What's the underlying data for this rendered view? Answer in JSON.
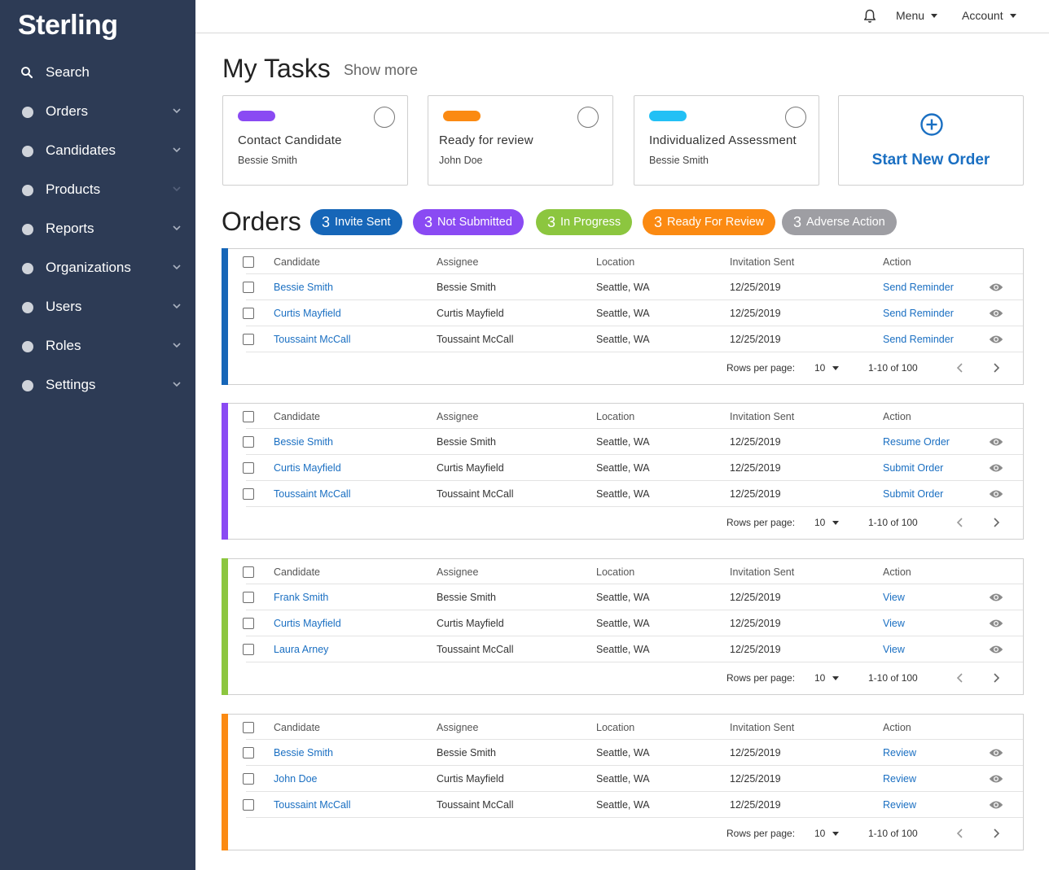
{
  "brand": {
    "name": "Sterling"
  },
  "sidebar": {
    "items": [
      {
        "label": "Search",
        "icon": "search-icon"
      },
      {
        "label": "Orders",
        "icon": "dot-icon"
      },
      {
        "label": "Candidates",
        "icon": "dot-icon"
      },
      {
        "label": "Products",
        "icon": "dot-icon"
      },
      {
        "label": "Reports",
        "icon": "dot-icon"
      },
      {
        "label": "Organizations",
        "icon": "dot-icon"
      },
      {
        "label": "Users",
        "icon": "dot-icon"
      },
      {
        "label": "Roles",
        "icon": "dot-icon"
      },
      {
        "label": "Settings",
        "icon": "dot-icon"
      }
    ]
  },
  "topbar": {
    "menu_label": "Menu",
    "account_label": "Account"
  },
  "tasks": {
    "title": "My Tasks",
    "show_more": "Show more",
    "cards": [
      {
        "title": "Contact Candidate",
        "person": "Bessie Smith",
        "color": "#8a4af3"
      },
      {
        "title": "Ready for review",
        "person": "John Doe",
        "color": "#fb8a12"
      },
      {
        "title": "Individualized Assessment",
        "person": "Bessie Smith",
        "color": "#22c0f5"
      }
    ],
    "start_new": "Start New Order"
  },
  "orders": {
    "title": "Orders",
    "badges": [
      {
        "count": "3",
        "label": "Invite Sent",
        "color": "#1666b8"
      },
      {
        "count": "3",
        "label": "Not Submitted",
        "color": "#8a4af3"
      },
      {
        "count": "3",
        "label": "In Progress",
        "color": "#8cc63f"
      },
      {
        "count": "3",
        "label": "Ready For Review",
        "color": "#fb8a12"
      },
      {
        "count": "3",
        "label": "Adverse Action",
        "color": "#9e9ea3"
      }
    ],
    "columns": {
      "candidate": "Candidate",
      "assignee": "Assignee",
      "location": "Location",
      "invitation": "Invitation Sent",
      "action": "Action"
    },
    "pagination": {
      "rows_label": "Rows per page:",
      "rows_value": "10",
      "range": "1-10 of 100"
    },
    "tables": [
      {
        "color": "#1666b8",
        "rows": [
          {
            "candidate": "Bessie Smith",
            "assignee": "Bessie Smith",
            "location": "Seattle, WA",
            "date": "12/25/2019",
            "action": "Send Reminder"
          },
          {
            "candidate": "Curtis Mayfield",
            "assignee": "Curtis Mayfield",
            "location": "Seattle, WA",
            "date": "12/25/2019",
            "action": "Send Reminder"
          },
          {
            "candidate": "Toussaint McCall",
            "assignee": "Toussaint McCall",
            "location": "Seattle, WA",
            "date": "12/25/2019",
            "action": "Send Reminder"
          }
        ]
      },
      {
        "color": "#8a4af3",
        "rows": [
          {
            "candidate": "Bessie Smith",
            "assignee": "Bessie Smith",
            "location": "Seattle, WA",
            "date": "12/25/2019",
            "action": "Resume Order"
          },
          {
            "candidate": "Curtis Mayfield",
            "assignee": "Curtis Mayfield",
            "location": "Seattle, WA",
            "date": "12/25/2019",
            "action": "Submit Order"
          },
          {
            "candidate": "Toussaint McCall",
            "assignee": "Toussaint McCall",
            "location": "Seattle, WA",
            "date": "12/25/2019",
            "action": "Submit Order"
          }
        ]
      },
      {
        "color": "#8cc63f",
        "rows": [
          {
            "candidate": "Frank Smith",
            "assignee": "Bessie Smith",
            "location": "Seattle, WA",
            "date": "12/25/2019",
            "action": "View"
          },
          {
            "candidate": "Curtis Mayfield",
            "assignee": "Curtis Mayfield",
            "location": "Seattle, WA",
            "date": "12/25/2019",
            "action": "View"
          },
          {
            "candidate": "Laura Arney",
            "assignee": "Toussaint McCall",
            "location": "Seattle, WA",
            "date": "12/25/2019",
            "action": "View"
          }
        ]
      },
      {
        "color": "#fb8a12",
        "rows": [
          {
            "candidate": "Bessie Smith",
            "assignee": "Bessie Smith",
            "location": "Seattle, WA",
            "date": "12/25/2019",
            "action": "Review"
          },
          {
            "candidate": "John Doe",
            "assignee": "Curtis Mayfield",
            "location": "Seattle, WA",
            "date": "12/25/2019",
            "action": "Review"
          },
          {
            "candidate": "Toussaint McCall",
            "assignee": "Toussaint McCall",
            "location": "Seattle, WA",
            "date": "12/25/2019",
            "action": "Review"
          }
        ]
      }
    ]
  }
}
